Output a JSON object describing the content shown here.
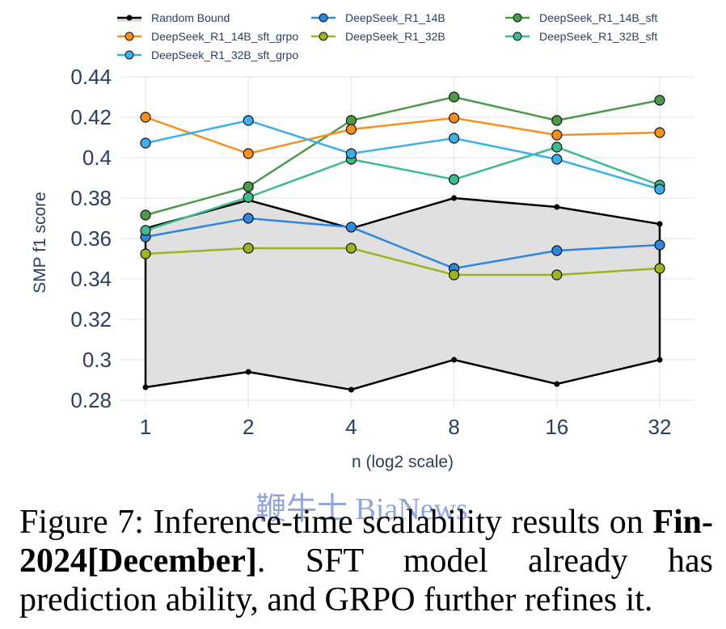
{
  "chart_data": {
    "type": "line",
    "title": "",
    "xlabel": "n (log2 scale)",
    "ylabel": "SMP f1 score",
    "x": [
      1,
      2,
      4,
      8,
      16,
      32
    ],
    "x_tick_labels": [
      "1",
      "2",
      "4",
      "8",
      "16",
      "32"
    ],
    "x_scale": "log2",
    "ylim": [
      0.28,
      0.44
    ],
    "y_ticks": [
      0.28,
      0.3,
      0.32,
      0.34,
      0.36,
      0.38,
      0.4,
      0.42,
      0.44
    ],
    "y_tick_labels": [
      "0.28",
      "0.3",
      "0.32",
      "0.34",
      "0.36",
      "0.38",
      "0.4",
      "0.42",
      "0.44"
    ],
    "grid": true,
    "legend_position": "top",
    "random_bound": {
      "name": "Random Bound",
      "color": "#000000",
      "fill": "#e0e0e0",
      "upper": [
        0.365,
        0.379,
        0.365,
        0.38,
        0.3756,
        0.3672
      ],
      "lower": [
        0.2864,
        0.294,
        0.2852,
        0.3,
        0.288,
        0.3
      ]
    },
    "series": [
      {
        "name": "DeepSeek_R1_14B",
        "color": "#2e86de",
        "values": [
          0.3608,
          0.37,
          0.3656,
          0.3452,
          0.354,
          0.3568
        ]
      },
      {
        "name": "DeepSeek_R1_14B_sft",
        "color": "#4a9a4a",
        "values": [
          0.3716,
          0.3856,
          0.4184,
          0.43,
          0.4184,
          0.4284
        ]
      },
      {
        "name": "DeepSeek_R1_14B_sft_grpo",
        "color": "#f5901e",
        "values": [
          0.42,
          0.402,
          0.414,
          0.4196,
          0.4112,
          0.4124
        ]
      },
      {
        "name": "DeepSeek_R1_32B",
        "color": "#9ab51f",
        "values": [
          0.3524,
          0.3552,
          0.3552,
          0.342,
          0.342,
          0.3452
        ]
      },
      {
        "name": "DeepSeek_R1_32B_sft",
        "color": "#3dbb8a",
        "values": [
          0.364,
          0.3804,
          0.3992,
          0.3892,
          0.4052,
          0.3864
        ]
      },
      {
        "name": "DeepSeek_R1_32B_sft_grpo",
        "color": "#3daeea",
        "values": [
          0.4072,
          0.4184,
          0.402,
          0.4096,
          0.3992,
          0.3844
        ]
      }
    ],
    "legend_order": [
      "Random Bound",
      "DeepSeek_R1_14B",
      "DeepSeek_R1_14B_sft",
      "DeepSeek_R1_14B_sft_grpo",
      "DeepSeek_R1_32B",
      "DeepSeek_R1_32B_sft",
      "DeepSeek_R1_32B_sft_grpo"
    ]
  },
  "caption": {
    "prefix": "Figure 7:  Inference-time scalability results on ",
    "bold": "Fin-2024[December]",
    "suffix": ".  SFT model already has prediction ability, and GRPO further refines it."
  },
  "watermark": "鞭牛士 BiaNews"
}
